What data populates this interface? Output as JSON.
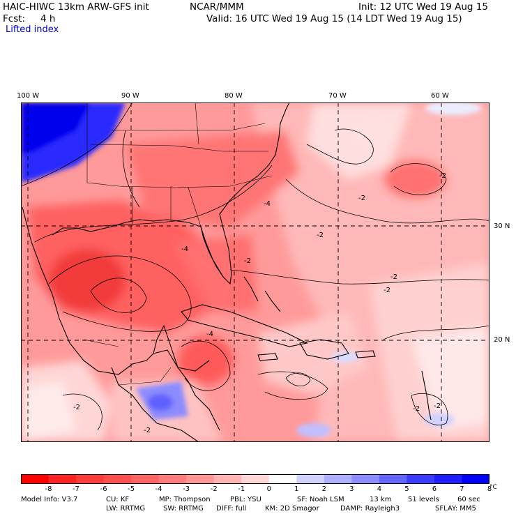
{
  "header": {
    "model_title": "HAIC-HIWC 13km ARW-GFS init",
    "org": "NCAR/MMM",
    "init": "Init: 12 UTC Wed 19 Aug 15",
    "fcst_label": "Fcst:",
    "fcst_value": "4 h",
    "valid": "Valid: 16 UTC Wed 19 Aug 15 (14 LDT Wed 19 Aug 15)",
    "field_name": "Lifted index"
  },
  "map": {
    "lon_labels": [
      "100 W",
      "90 W",
      "80 W",
      "70 W",
      "60 W"
    ],
    "lat_labels": [
      "30 N",
      "20 N"
    ],
    "contour_labels": [
      "-4",
      "-4",
      "-4",
      "-2",
      "-2",
      "-2",
      "-2",
      "-2",
      "-2",
      "-2",
      "-2",
      "-2",
      "-2"
    ]
  },
  "colorbar": {
    "ticks": [
      "-8",
      "-7",
      "-6",
      "-5",
      "-4",
      "-3",
      "-2",
      "-1",
      "0",
      "1",
      "2",
      "3",
      "4",
      "5",
      "6",
      "7",
      "8"
    ],
    "unit": "°C",
    "colors": [
      "#ff0000",
      "#ff2222",
      "#ff3c3c",
      "#ff5050",
      "#ff6464",
      "#ff7c7c",
      "#ff9696",
      "#ffb4b4",
      "#ffd6d6",
      "#ffffff",
      "#d2d2ff",
      "#afafff",
      "#8c8cff",
      "#6464ff",
      "#3c3cff",
      "#1e1eff",
      "#0000ff"
    ]
  },
  "model_info": {
    "line1": [
      "Model Info: V3.7",
      "CU: KF",
      "MP: Thompson",
      "PBL: YSU",
      "SF: Noah LSM",
      "13 km",
      "51 levels",
      "60 sec"
    ],
    "line2": [
      "LW: RRTMG",
      "SW: RRTMG",
      "DIFF: full",
      "KM: 2D Smagor",
      "DAMP: Rayleigh3",
      "SFLAY: MM5"
    ]
  },
  "palette": {
    "strong_red": "#f23030",
    "red": "#ff5a5a",
    "mid_red": "#ff7f7f",
    "light_red": "#ffa8a8",
    "pale_red": "#ffd2d2",
    "white": "#ffffff",
    "light_blue": "#d2d2ff",
    "blue": "#7070ff",
    "deep_blue": "#2020ff"
  }
}
